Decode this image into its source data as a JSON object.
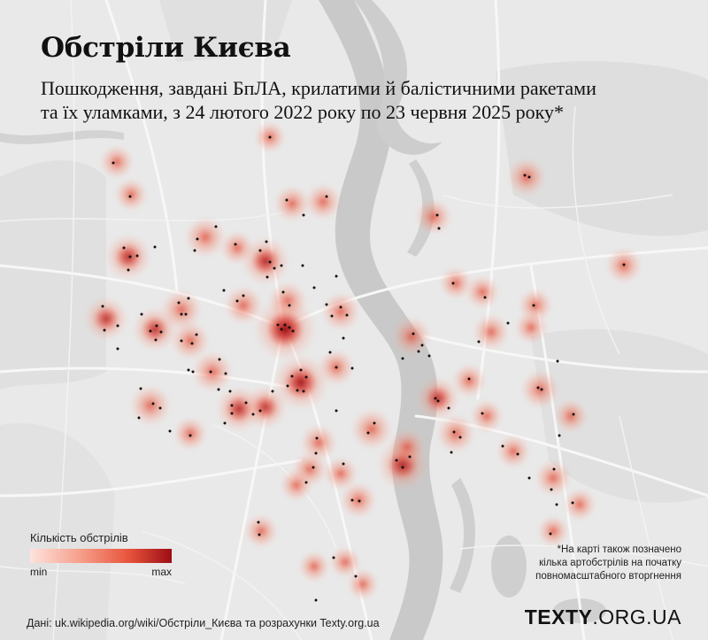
{
  "title": "Обстріли Києва",
  "subtitle_line1": "Пошкодження, завдані БпЛА, крилатими й балістичними ракетами",
  "subtitle_line2": "та їх уламками, з 24 лютого 2022 року по 23 червня 2025 року*",
  "legend": {
    "title": "Кількість обстрілів",
    "min": "min",
    "max": "max"
  },
  "footnote": "*На карті також позначено кілька артобстрілів на початку повномасштабного вторгнення",
  "source": "Дані: uk.wikipedia.org/wiki/Обстріли_Києва та розрахунки Texty.org.ua",
  "brand": {
    "bold": "TEXTY",
    "rest": ".ORG.UA"
  },
  "colors": {
    "background": "#e9e9e9",
    "water": "#c5c5c5",
    "parks": "#dcdcdc",
    "roads": "#f7f7f7",
    "heat_low": "#f7b3a3",
    "heat_mid": "#e8533c",
    "heat_high": "#9c0d14",
    "dot": "#111111"
  },
  "heat_spots": [
    [
      132,
      183,
      0.4
    ],
    [
      148,
      220,
      0.35
    ],
    [
      145,
      290,
      0.9
    ],
    [
      232,
      268,
      0.7
    ],
    [
      268,
      280,
      0.4
    ],
    [
      300,
      295,
      1.0
    ],
    [
      305,
      155,
      0.3
    ],
    [
      330,
      230,
      0.5
    ],
    [
      365,
      228,
      0.5
    ],
    [
      120,
      360,
      0.8
    ],
    [
      175,
      372,
      0.85
    ],
    [
      205,
      350,
      0.7
    ],
    [
      215,
      385,
      0.6
    ],
    [
      240,
      420,
      0.7
    ],
    [
      275,
      345,
      0.6
    ],
    [
      325,
      340,
      0.6
    ],
    [
      322,
      372,
      1.6
    ],
    [
      385,
      352,
      0.6
    ],
    [
      340,
      432,
      1.3
    ],
    [
      270,
      462,
      0.9
    ],
    [
      300,
      460,
      0.8
    ],
    [
      170,
      458,
      0.7
    ],
    [
      215,
      490,
      0.4
    ],
    [
      380,
      415,
      0.5
    ],
    [
      420,
      485,
      0.7
    ],
    [
      455,
      525,
      1.1
    ],
    [
      465,
      380,
      0.6
    ],
    [
      495,
      450,
      0.8
    ],
    [
      515,
      490,
      0.6
    ],
    [
      530,
      430,
      0.4
    ],
    [
      555,
      375,
      0.5
    ],
    [
      490,
      245,
      0.5
    ],
    [
      595,
      200,
      0.6
    ],
    [
      705,
      300,
      0.5
    ],
    [
      545,
      330,
      0.4
    ],
    [
      515,
      320,
      0.35
    ],
    [
      605,
      345,
      0.4
    ],
    [
      610,
      440,
      0.6
    ],
    [
      645,
      470,
      0.4
    ],
    [
      625,
      540,
      0.5
    ],
    [
      580,
      510,
      0.4
    ],
    [
      550,
      470,
      0.35
    ],
    [
      360,
      500,
      0.5
    ],
    [
      350,
      530,
      0.45
    ],
    [
      405,
      565,
      0.5
    ],
    [
      460,
      505,
      0.5
    ],
    [
      295,
      600,
      0.4
    ],
    [
      390,
      635,
      0.3
    ],
    [
      410,
      660,
      0.3
    ],
    [
      355,
      640,
      0.3
    ],
    [
      385,
      535,
      0.4
    ],
    [
      600,
      370,
      0.35
    ],
    [
      655,
      570,
      0.35
    ],
    [
      625,
      600,
      0.3
    ],
    [
      335,
      548,
      0.35
    ]
  ],
  "incident_points": [
    [
      305,
      155
    ],
    [
      128,
      184
    ],
    [
      147,
      222
    ],
    [
      324,
      226
    ],
    [
      343,
      243
    ],
    [
      369,
      222
    ],
    [
      494,
      243
    ],
    [
      496,
      258
    ],
    [
      593,
      198
    ],
    [
      598,
      200
    ],
    [
      705,
      299
    ],
    [
      140,
      280
    ],
    [
      147,
      290
    ],
    [
      155,
      289
    ],
    [
      145,
      305
    ],
    [
      175,
      279
    ],
    [
      223,
      270
    ],
    [
      220,
      283
    ],
    [
      244,
      256
    ],
    [
      266,
      276
    ],
    [
      301,
      273
    ],
    [
      294,
      283
    ],
    [
      305,
      296
    ],
    [
      310,
      303
    ],
    [
      318,
      300
    ],
    [
      302,
      313
    ],
    [
      342,
      300
    ],
    [
      320,
      330
    ],
    [
      327,
      345
    ],
    [
      355,
      325
    ],
    [
      380,
      312
    ],
    [
      392,
      356
    ],
    [
      385,
      347
    ],
    [
      116,
      346
    ],
    [
      118,
      373
    ],
    [
      133,
      368
    ],
    [
      133,
      394
    ],
    [
      160,
      355
    ],
    [
      170,
      374
    ],
    [
      177,
      368
    ],
    [
      182,
      375
    ],
    [
      176,
      384
    ],
    [
      202,
      342
    ],
    [
      205,
      355
    ],
    [
      210,
      355
    ],
    [
      213,
      337
    ],
    [
      222,
      378
    ],
    [
      217,
      388
    ],
    [
      205,
      385
    ],
    [
      213,
      418
    ],
    [
      218,
      420
    ],
    [
      248,
      406
    ],
    [
      238,
      420
    ],
    [
      247,
      440
    ],
    [
      255,
      422
    ],
    [
      260,
      442
    ],
    [
      253,
      328
    ],
    [
      268,
      340
    ],
    [
      275,
      334
    ],
    [
      318,
      372
    ],
    [
      322,
      367
    ],
    [
      327,
      370
    ],
    [
      331,
      374
    ],
    [
      314,
      367
    ],
    [
      375,
      357
    ],
    [
      369,
      344
    ],
    [
      388,
      382
    ],
    [
      398,
      416
    ],
    [
      373,
      398
    ],
    [
      340,
      418
    ],
    [
      330,
      425
    ],
    [
      325,
      436
    ],
    [
      336,
      441
    ],
    [
      343,
      442
    ],
    [
      346,
      426
    ],
    [
      308,
      442
    ],
    [
      294,
      464
    ],
    [
      286,
      468
    ],
    [
      278,
      455
    ],
    [
      262,
      458
    ],
    [
      262,
      467
    ],
    [
      254,
      478
    ],
    [
      173,
      456
    ],
    [
      181,
      461
    ],
    [
      159,
      439
    ],
    [
      157,
      472
    ],
    [
      192,
      487
    ],
    [
      215,
      492
    ],
    [
      380,
      464
    ],
    [
      380,
      415
    ],
    [
      423,
      478
    ],
    [
      416,
      489
    ],
    [
      455,
      405
    ],
    [
      467,
      377
    ],
    [
      473,
      397
    ],
    [
      477,
      390
    ],
    [
      485,
      402
    ],
    [
      492,
      450
    ],
    [
      495,
      453
    ],
    [
      507,
      461
    ],
    [
      513,
      488
    ],
    [
      520,
      494
    ],
    [
      510,
      511
    ],
    [
      545,
      467
    ],
    [
      530,
      428
    ],
    [
      512,
      320
    ],
    [
      548,
      336
    ],
    [
      574,
      365
    ],
    [
      541,
      386
    ],
    [
      603,
      345
    ],
    [
      608,
      438
    ],
    [
      612,
      440
    ],
    [
      630,
      408
    ],
    [
      648,
      468
    ],
    [
      632,
      492
    ],
    [
      568,
      504
    ],
    [
      585,
      513
    ],
    [
      455,
      528
    ],
    [
      448,
      520
    ],
    [
      463,
      516
    ],
    [
      358,
      495
    ],
    [
      357,
      512
    ],
    [
      354,
      528
    ],
    [
      346,
      545
    ],
    [
      388,
      524
    ],
    [
      398,
      565
    ],
    [
      406,
      566
    ],
    [
      292,
      590
    ],
    [
      293,
      604
    ],
    [
      377,
      630
    ],
    [
      402,
      651
    ],
    [
      357,
      678
    ],
    [
      626,
      530
    ],
    [
      623,
      553
    ],
    [
      629,
      570
    ],
    [
      647,
      568
    ],
    [
      598,
      540
    ],
    [
      622,
      603
    ]
  ]
}
